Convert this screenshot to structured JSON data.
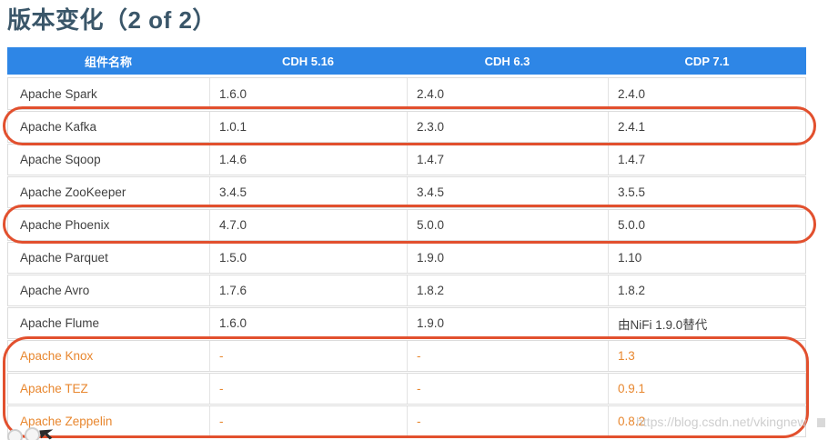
{
  "page": {
    "title": "版本变化（2 of 2）"
  },
  "watermark": {
    "text": "https://blog.csdn.net/vkingnew"
  },
  "colors": {
    "header_bg": "#2e86e6",
    "header_text": "#ffffff",
    "title_text": "#3a5669",
    "body_text": "#3f3f3f",
    "orange_text": "#e8872f",
    "highlight_stroke": "#e2502e",
    "row_border": "#dcdcdc"
  },
  "table": {
    "columns": [
      "组件名称",
      "CDH 5.16",
      "CDH 6.3",
      "CDP 7.1"
    ],
    "rows": [
      {
        "cells": [
          "Apache Spark",
          "1.6.0",
          "2.4.0",
          "2.4.0"
        ],
        "orange": false,
        "highlighted": false
      },
      {
        "cells": [
          "Apache Kafka",
          "1.0.1",
          "2.3.0",
          "2.4.1"
        ],
        "orange": false,
        "highlighted": true
      },
      {
        "cells": [
          "Apache Sqoop",
          "1.4.6",
          "1.4.7",
          "1.4.7"
        ],
        "orange": false,
        "highlighted": false
      },
      {
        "cells": [
          "Apache ZooKeeper",
          "3.4.5",
          "3.4.5",
          "3.5.5"
        ],
        "orange": false,
        "highlighted": false
      },
      {
        "cells": [
          "Apache Phoenix",
          "4.7.0",
          "5.0.0",
          "5.0.0"
        ],
        "orange": false,
        "highlighted": true
      },
      {
        "cells": [
          "Apache Parquet",
          "1.5.0",
          "1.9.0",
          "1.10"
        ],
        "orange": false,
        "highlighted": false
      },
      {
        "cells": [
          "Apache Avro",
          "1.7.6",
          "1.8.2",
          "1.8.2"
        ],
        "orange": false,
        "highlighted": false
      },
      {
        "cells": [
          "Apache Flume",
          "1.6.0",
          "1.9.0",
          "由NiFi 1.9.0替代"
        ],
        "orange": false,
        "highlighted": false
      },
      {
        "cells": [
          "Apache Knox",
          "-",
          "-",
          "1.3"
        ],
        "orange": true,
        "highlighted": true
      },
      {
        "cells": [
          "Apache TEZ",
          "-",
          "-",
          "0.9.1"
        ],
        "orange": true,
        "highlighted": true
      },
      {
        "cells": [
          "Apache Zeppelin",
          "-",
          "-",
          "0.8.2"
        ],
        "orange": true,
        "highlighted": true
      }
    ],
    "highlight_groups": [
      {
        "rows": [
          "Apache Kafka"
        ]
      },
      {
        "rows": [
          "Apache Phoenix"
        ]
      },
      {
        "rows": [
          "Apache Knox",
          "Apache TEZ",
          "Apache Zeppelin"
        ]
      }
    ]
  }
}
